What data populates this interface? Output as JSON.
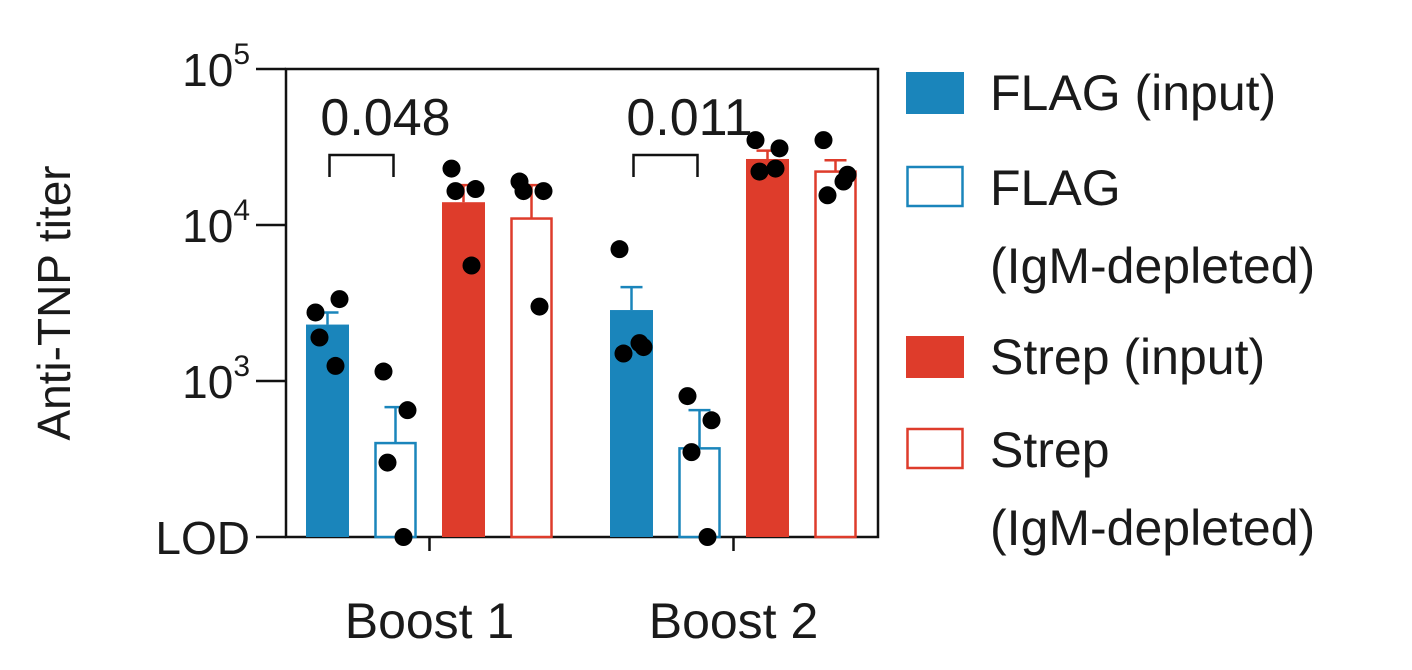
{
  "chart_data": {
    "type": "bar",
    "ylabel": "Anti-TNP titer",
    "yscale": "log",
    "ylim": [
      100,
      100000
    ],
    "yticks": [
      {
        "value": 100,
        "label": "LOD"
      },
      {
        "value": 1000,
        "base": "10",
        "exp": "3"
      },
      {
        "value": 10000,
        "base": "10",
        "exp": "4"
      },
      {
        "value": 100000,
        "base": "10",
        "exp": "5"
      }
    ],
    "categories": [
      "Boost 1",
      "Boost 2"
    ],
    "series": [
      {
        "name": "FLAG (input)",
        "color": "#1a85bb",
        "fill": "filled",
        "values": [
          2300,
          2850
        ],
        "errors": [
          2750,
          4000
        ],
        "points": [
          [
            2750,
            3350,
            1900,
            1250
          ],
          [
            7000,
            1650,
            1500,
            1750
          ]
        ]
      },
      {
        "name": "FLAG (IgM-depleted)",
        "color": "#1a85bb",
        "fill": "open",
        "values": [
          400,
          370
        ],
        "errors": [
          680,
          650
        ],
        "points": [
          [
            1150,
            650,
            300,
            100
          ],
          [
            800,
            560,
            350,
            100
          ]
        ]
      },
      {
        "name": "Strep (input)",
        "color": "#de3c2b",
        "fill": "filled",
        "values": [
          14000,
          26500
        ],
        "errors": [
          18000,
          30000
        ],
        "points": [
          [
            23000,
            17000,
            16500,
            5500
          ],
          [
            35000,
            31000,
            22000,
            23000
          ]
        ]
      },
      {
        "name": "Strep (IgM-depleted)",
        "color": "#de3c2b",
        "fill": "open",
        "values": [
          11000,
          22000
        ],
        "errors": [
          18000,
          26000
        ],
        "points": [
          [
            19000,
            16500,
            16500,
            3000
          ],
          [
            35000,
            21000,
            15500,
            19000
          ]
        ]
      }
    ],
    "annotations": [
      {
        "text": "0.048",
        "category": 0,
        "from_series": 0,
        "to_series": 1
      },
      {
        "text": "0.011",
        "category": 1,
        "from_series": 0,
        "to_series": 1
      }
    ],
    "legend": {
      "position": "right",
      "entries": [
        {
          "lines": [
            "FLAG (input)"
          ],
          "color": "#1a85bb",
          "fill": "filled"
        },
        {
          "lines": [
            "FLAG",
            "(IgM-depleted)"
          ],
          "color": "#1a85bb",
          "fill": "open"
        },
        {
          "lines": [
            "Strep (input)"
          ],
          "color": "#de3c2b",
          "fill": "filled"
        },
        {
          "lines": [
            "Strep",
            "(IgM-depleted)"
          ],
          "color": "#de3c2b",
          "fill": "open"
        }
      ]
    }
  }
}
